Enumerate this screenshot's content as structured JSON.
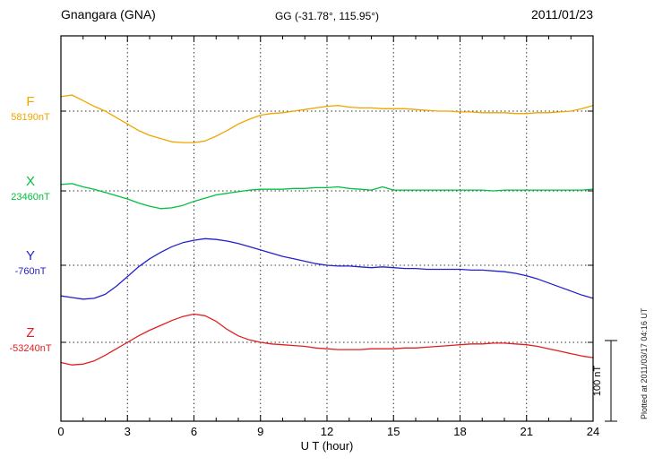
{
  "header": {
    "station": "Gnangara (GNA)",
    "coords": "GG (-31.78°, 115.95°)",
    "date": "2011/01/23"
  },
  "xaxis": {
    "label": "U T (hour)",
    "ticks": [
      0,
      3,
      6,
      9,
      12,
      15,
      18,
      21,
      24
    ],
    "min": 0,
    "max": 24,
    "minor_tick_hours": 1,
    "grid_hours": [
      3,
      6,
      9,
      12,
      15,
      18,
      21
    ]
  },
  "scalebar": {
    "label": "100 nT",
    "nT": 100
  },
  "side_note": "Plotted at 2011/03/17 04:16 UT",
  "chart_data": {
    "type": "line",
    "title": "Gnangara (GNA) magnetogram 2011/01/23",
    "xlabel": "U T (hour)",
    "x_start_hour": 0,
    "x_step_hours": 0.5,
    "x_range": [
      0,
      24
    ],
    "grid": "dotted",
    "scale_nT_per_bar": 100,
    "series": [
      {
        "name": "F",
        "baseline_label": "58190nT",
        "baseline_nT": 58190,
        "color": "#f0a500",
        "offsets_nT": [
          18,
          20,
          13,
          6,
          0,
          -8,
          -16,
          -24,
          -30,
          -34,
          -38,
          -39,
          -39,
          -37,
          -31,
          -24,
          -16,
          -10,
          -5,
          -3,
          -2,
          0,
          2,
          4,
          6,
          7,
          5,
          4,
          4,
          3,
          3,
          3,
          2,
          1,
          0,
          0,
          -1,
          -1,
          -2,
          -2,
          -2,
          -3,
          -3,
          -2,
          -2,
          -1,
          0,
          3,
          7
        ]
      },
      {
        "name": "X",
        "baseline_label": "23460nT",
        "baseline_nT": 23460,
        "color": "#00c040",
        "offsets_nT": [
          8,
          9,
          5,
          2,
          -2,
          -6,
          -10,
          -15,
          -19,
          -22,
          -21,
          -18,
          -13,
          -9,
          -5,
          -3,
          -1,
          1,
          2,
          2,
          2,
          3,
          3,
          4,
          4,
          5,
          3,
          2,
          1,
          5,
          1,
          1,
          1,
          1,
          1,
          1,
          1,
          1,
          1,
          0,
          1,
          1,
          1,
          1,
          1,
          1,
          1,
          1,
          2
        ]
      },
      {
        "name": "Y",
        "baseline_label": "-760nT",
        "baseline_nT": -760,
        "color": "#2222cc",
        "offsets_nT": [
          -38,
          -40,
          -42,
          -41,
          -36,
          -26,
          -14,
          -2,
          8,
          16,
          23,
          28,
          31,
          33,
          32,
          30,
          27,
          23,
          19,
          15,
          11,
          8,
          5,
          2,
          0,
          -1,
          -1,
          -2,
          -3,
          -2,
          -3,
          -4,
          -4,
          -5,
          -5,
          -5,
          -5,
          -6,
          -6,
          -7,
          -8,
          -10,
          -13,
          -17,
          -22,
          -27,
          -32,
          -37,
          -41
        ]
      },
      {
        "name": "Z",
        "baseline_label": "-53240nT",
        "baseline_nT": -53240,
        "color": "#e02020",
        "offsets_nT": [
          -25,
          -28,
          -27,
          -23,
          -16,
          -8,
          0,
          8,
          15,
          21,
          27,
          32,
          35,
          33,
          26,
          16,
          8,
          3,
          0,
          -2,
          -3,
          -4,
          -5,
          -7,
          -8,
          -9,
          -9,
          -9,
          -8,
          -8,
          -8,
          -7,
          -7,
          -6,
          -5,
          -4,
          -3,
          -2,
          -2,
          -1,
          -1,
          -2,
          -3,
          -5,
          -8,
          -11,
          -14,
          -17,
          -19
        ]
      }
    ]
  }
}
